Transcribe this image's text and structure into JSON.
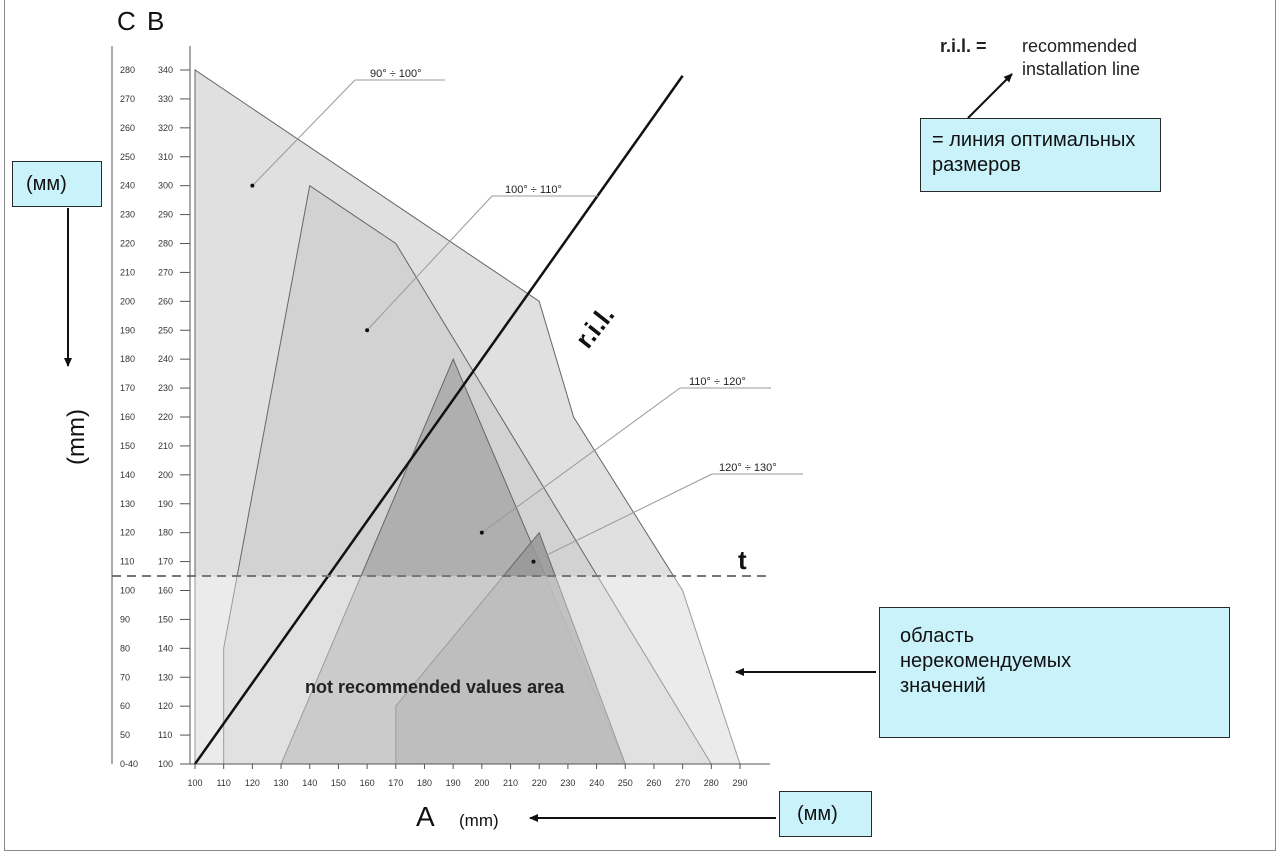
{
  "chart_data": {
    "type": "area",
    "title": "",
    "x_axis": {
      "letter": "A",
      "unit": "(mm)",
      "ticks": [
        100,
        110,
        120,
        130,
        140,
        150,
        160,
        170,
        180,
        190,
        200,
        210,
        220,
        230,
        240,
        250,
        260,
        270,
        280,
        290
      ],
      "range": [
        100,
        290
      ]
    },
    "y_axis_B": {
      "letter": "B",
      "ticks": [
        100,
        110,
        120,
        130,
        140,
        150,
        160,
        170,
        180,
        190,
        200,
        210,
        220,
        230,
        240,
        250,
        260,
        270,
        280,
        290,
        300,
        310,
        320,
        330,
        340
      ],
      "range": [
        100,
        340
      ]
    },
    "y_axis_C": {
      "letter": "C",
      "ticks": [
        "0-40",
        "50",
        "60",
        "70",
        "80",
        "90",
        "100",
        "110",
        "120",
        "130",
        "140",
        "150",
        "160",
        "170",
        "180",
        "190",
        "200",
        "210",
        "220",
        "230",
        "240",
        "250",
        "260",
        "270",
        "280"
      ]
    },
    "y_axis_unit": "(mm)",
    "regions": [
      {
        "name": "90° ÷ 100°",
        "fill": "#e0e0e0",
        "marker": [
          120,
          300
        ],
        "polygon": [
          [
            100,
            100
          ],
          [
            100,
            340
          ],
          [
            220,
            260
          ],
          [
            232,
            220
          ],
          [
            270,
            160
          ],
          [
            290,
            100
          ]
        ]
      },
      {
        "name": "100° ÷ 110°",
        "fill": "#cfcfcf",
        "marker": [
          160,
          250
        ],
        "polygon": [
          [
            110,
            100
          ],
          [
            110,
            140
          ],
          [
            140,
            300
          ],
          [
            170,
            280
          ],
          [
            280,
            100
          ]
        ]
      },
      {
        "name": "110° ÷ 120°",
        "fill": "#a9a9a9",
        "marker": [
          200,
          180
        ],
        "polygon": [
          [
            130,
            100
          ],
          [
            190,
            240
          ],
          [
            250,
            100
          ]
        ]
      },
      {
        "name": "120° ÷ 130°",
        "fill": "#989898",
        "marker": [
          218,
          170
        ],
        "polygon": [
          [
            170,
            100
          ],
          [
            170,
            120
          ],
          [
            220,
            180
          ],
          [
            250,
            100
          ]
        ]
      }
    ],
    "ril_line": {
      "label": "r.i.l.",
      "from": [
        100,
        100
      ],
      "to": [
        270,
        338
      ]
    },
    "t_line": {
      "label": "t",
      "y": 165
    },
    "not_recommended": {
      "label": "not recommended values area",
      "y_max": 165
    },
    "legend": {
      "abbr": "r.i.l. =",
      "text1": "recommended",
      "text2": "installation line"
    }
  },
  "notes": {
    "ril_ru1": "= линия оптимальных",
    "ril_ru2": "размеров",
    "unit_ru_left": "(мм)",
    "unit_ru_bottom": "(мм)",
    "area_ru1": "область",
    "area_ru2": "нерекомендуемых",
    "area_ru3": "значений"
  },
  "colors": {
    "note_bg": "#c9f2fb",
    "lines": "#555555",
    "ril": "#111111"
  }
}
